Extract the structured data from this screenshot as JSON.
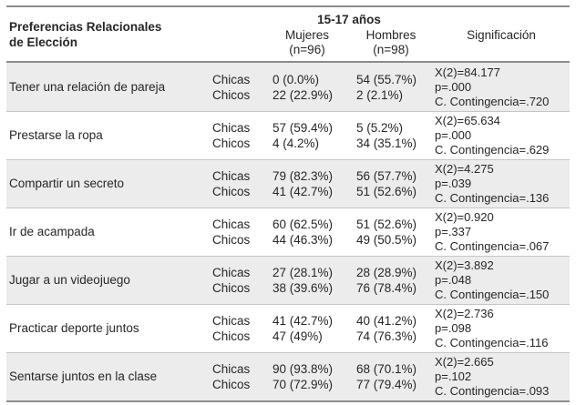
{
  "header": {
    "title_line1": "Preferencias Relacionales",
    "title_line2": "de Elección",
    "age_group": "15-17 años",
    "mujeres_label": "Mujeres",
    "mujeres_n": "(n=96)",
    "hombres_label": "Hombres",
    "hombres_n": "(n=98)",
    "significacion": "Significación"
  },
  "labels": {
    "chicas": "Chicas",
    "chicos": "Chicos"
  },
  "colors": {
    "row_shade": "#ececec",
    "rule_heavy": "#8c8c8c",
    "rule_light": "#c6c6c6"
  },
  "rows": [
    {
      "label": "Tener una relación de pareja",
      "mujeres": {
        "chicas": "0 (0.0%)",
        "chicos": "22 (22.9%)"
      },
      "hombres": {
        "chicas": "54 (55.7%)",
        "chicos": "2 (2.1%)"
      },
      "sig": {
        "chi": "X(2)=84.177",
        "p": "p=.000",
        "c": "C. Contingencia=.720"
      }
    },
    {
      "label": "Prestarse la ropa",
      "mujeres": {
        "chicas": "57 (59.4%)",
        "chicos": "4 (4.2%)"
      },
      "hombres": {
        "chicas": "5 (5.2%)",
        "chicos": "34 (35.1%)"
      },
      "sig": {
        "chi": "X(2)=65.634",
        "p": "p=.000",
        "c": "C. Contingencia=.629"
      }
    },
    {
      "label": "Compartir un secreto",
      "mujeres": {
        "chicas": "79 (82.3%)",
        "chicos": "41 (42.7%)"
      },
      "hombres": {
        "chicas": "56 (57.7%)",
        "chicos": "51 (52.6%)"
      },
      "sig": {
        "chi": "X(2)=4.275",
        "p": "p=.039",
        "c": "C. Contingencia=.136"
      }
    },
    {
      "label": "Ir de acampada",
      "mujeres": {
        "chicas": "60 (62.5%)",
        "chicos": "44 (46.3%)"
      },
      "hombres": {
        "chicas": "51 (52.6%)",
        "chicos": "49 (50.5%)"
      },
      "sig": {
        "chi": "X(2)=0.920",
        "p": "p=.337",
        "c": "C. Contingencia=.067"
      }
    },
    {
      "label": "Jugar a un videojuego",
      "mujeres": {
        "chicas": "27 (28.1%)",
        "chicos": "38 (39.6%)"
      },
      "hombres": {
        "chicas": "28 (28.9%)",
        "chicos": "76 (78.4%)"
      },
      "sig": {
        "chi": "X(2)=3.892",
        "p": "p=.048",
        "c": "C. Contingencia=.150"
      }
    },
    {
      "label": "Practicar deporte juntos",
      "mujeres": {
        "chicas": "41 (42.7%)",
        "chicos": "47 (49%)"
      },
      "hombres": {
        "chicas": "40 (41.2%)",
        "chicos": "74 (76.3%)"
      },
      "sig": {
        "chi": "X(2)=2.736",
        "p": "p=.098",
        "c": "C. Contingencia=.116"
      }
    },
    {
      "label": "Sentarse juntos en la clase",
      "mujeres": {
        "chicas": "90 (93.8%)",
        "chicos": "70 (72.9%)"
      },
      "hombres": {
        "chicas": "68 (70.1%)",
        "chicos": "77 (79.4%)"
      },
      "sig": {
        "chi": "X(2)=2.665",
        "p": "p=.102",
        "c": "C. Contingencia=.093"
      }
    }
  ]
}
